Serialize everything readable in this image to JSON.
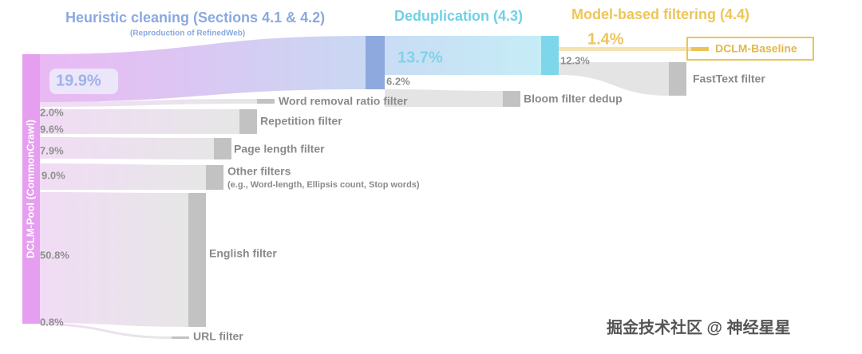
{
  "headers": {
    "heuristic": {
      "title": "Heuristic cleaning (Sections 4.1 & 4.2)",
      "subtitle": "(Reproduction of RefinedWeb)"
    },
    "dedup": "Deduplication (4.3)",
    "model": "Model-based filtering (4.4)"
  },
  "source": "DCLM-Pool (CommonCrawl)",
  "kept": {
    "heuristic": "19.9%",
    "dedup": "13.7%",
    "model": "1.4%"
  },
  "result": "DCLM-Baseline",
  "filters": [
    {
      "label": "Word removal ratio filter",
      "share": "2.0%"
    },
    {
      "label": "Repetition filter",
      "share": "9.6%"
    },
    {
      "label": "Page length filter",
      "share": "7.9%"
    },
    {
      "label": "Other filters",
      "note": "(e.g., Word-length, Ellipsis count, Stop words)",
      "share": "9.0%"
    },
    {
      "label": "English filter",
      "share": "50.8%"
    },
    {
      "label": "URL filter",
      "share": "0.8%"
    },
    {
      "label": "Bloom filter dedup",
      "share": "6.2%"
    },
    {
      "label": "FastText filter",
      "share": "12.3%"
    }
  ],
  "watermark": "掘金技术社区 @ 神经星星"
}
